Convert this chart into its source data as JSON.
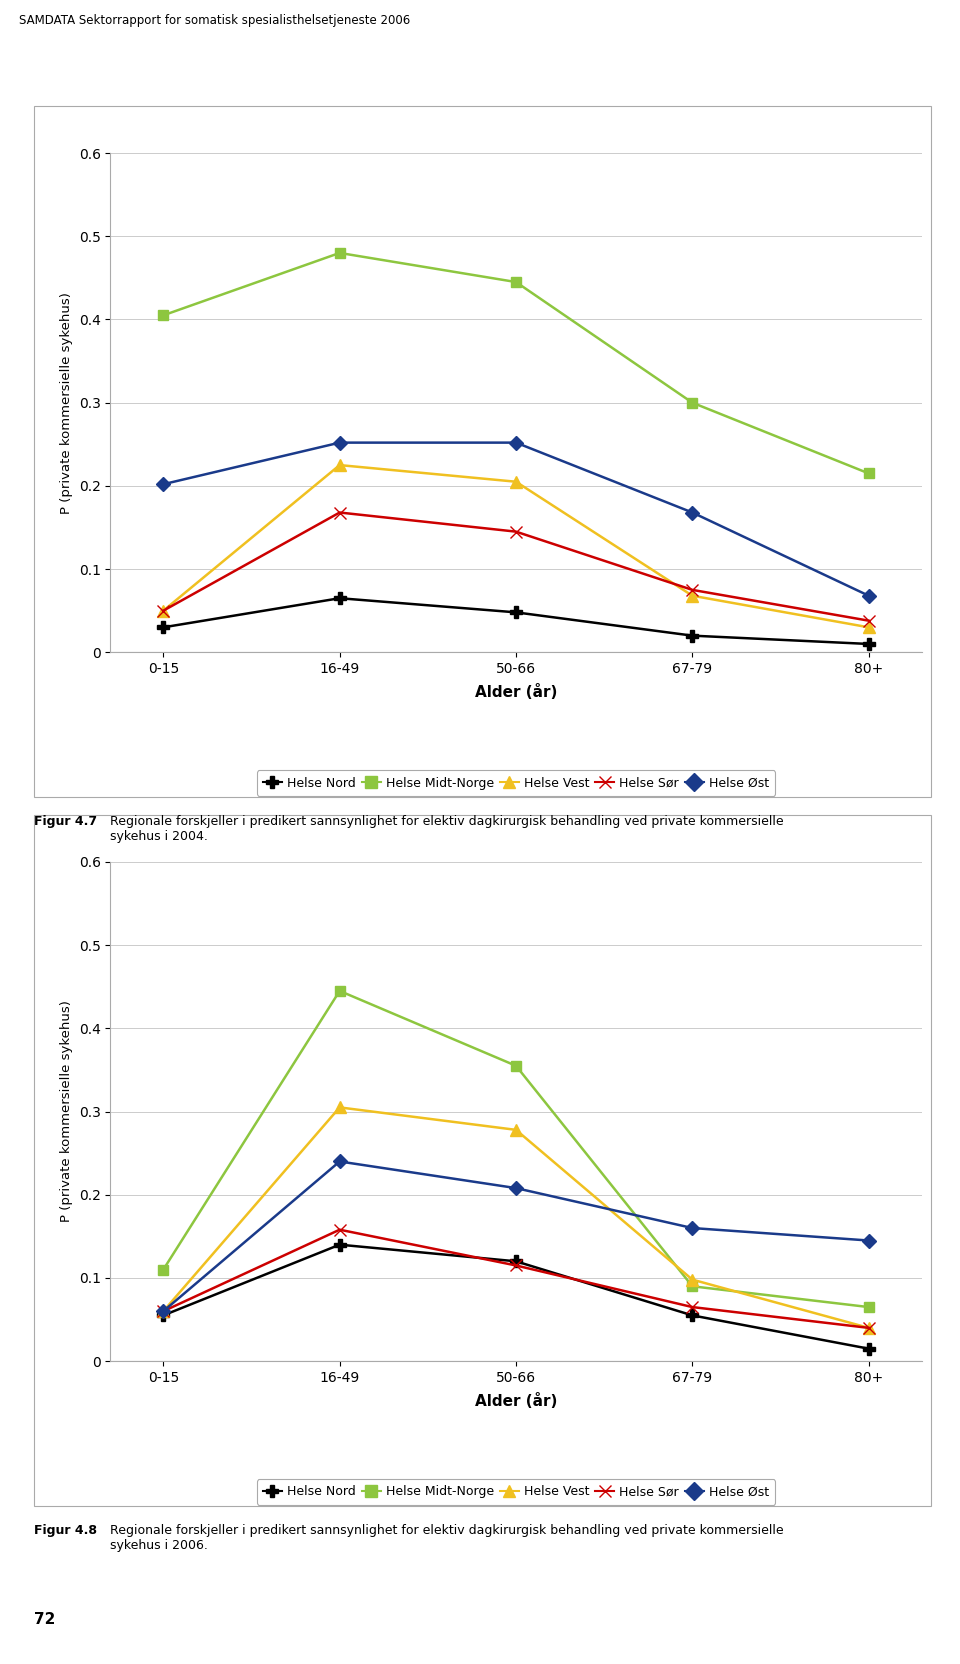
{
  "page_title": "SAMDATA Sektorrapport for somatisk spesialisthelsetjeneste 2006",
  "x_labels": [
    "0-15",
    "16-49",
    "50-66",
    "67-79",
    "80+"
  ],
  "x_positions": [
    0,
    1,
    2,
    3,
    4
  ],
  "xlabel": "Alder (år)",
  "ylabel": "P (private kommersielle sykehus)",
  "ylim": [
    0,
    0.6
  ],
  "yticks": [
    0,
    0.1,
    0.2,
    0.3,
    0.4,
    0.5,
    0.6
  ],
  "chart1": {
    "figur_label": "Figur 4.7",
    "figur_text": "Regionale forskjeller i predikert sannsynlighet for elektiv dagkirurgisk behandling ved private kommersielle\nsykehus i 2004.",
    "series": {
      "Helse Nord": [
        0.03,
        0.065,
        0.048,
        0.02,
        0.01
      ],
      "Helse Midt-Norge": [
        0.405,
        0.48,
        0.445,
        0.3,
        0.215
      ],
      "Helse Vest": [
        0.05,
        0.225,
        0.205,
        0.068,
        0.03
      ],
      "Helse Sør": [
        0.05,
        0.168,
        0.145,
        0.075,
        0.038
      ],
      "Helse Øst": [
        0.202,
        0.252,
        0.252,
        0.168,
        0.068
      ]
    }
  },
  "chart2": {
    "figur_label": "Figur 4.8",
    "figur_text": "Regionale forskjeller i predikert sannsynlighet for elektiv dagkirurgisk behandling ved private kommersielle\nsykehus i 2006.",
    "series": {
      "Helse Nord": [
        0.055,
        0.14,
        0.12,
        0.055,
        0.015
      ],
      "Helse Midt-Norge": [
        0.11,
        0.445,
        0.355,
        0.09,
        0.065
      ],
      "Helse Vest": [
        0.06,
        0.305,
        0.278,
        0.098,
        0.04
      ],
      "Helse Sør": [
        0.06,
        0.158,
        0.115,
        0.065,
        0.04
      ],
      "Helse Øst": [
        0.06,
        0.24,
        0.208,
        0.16,
        0.145
      ]
    }
  },
  "series_names": [
    "Helse Nord",
    "Helse Midt-Norge",
    "Helse Vest",
    "Helse Sør",
    "Helse Øst"
  ],
  "series_colors": {
    "Helse Nord": "#000000",
    "Helse Midt-Norge": "#8DC63F",
    "Helse Vest": "#F0C020",
    "Helse Sør": "#CC0000",
    "Helse Øst": "#1a3a8a"
  },
  "background_color": "#ffffff",
  "grid_color": "#cccccc",
  "border_color": "#aaaaaa"
}
